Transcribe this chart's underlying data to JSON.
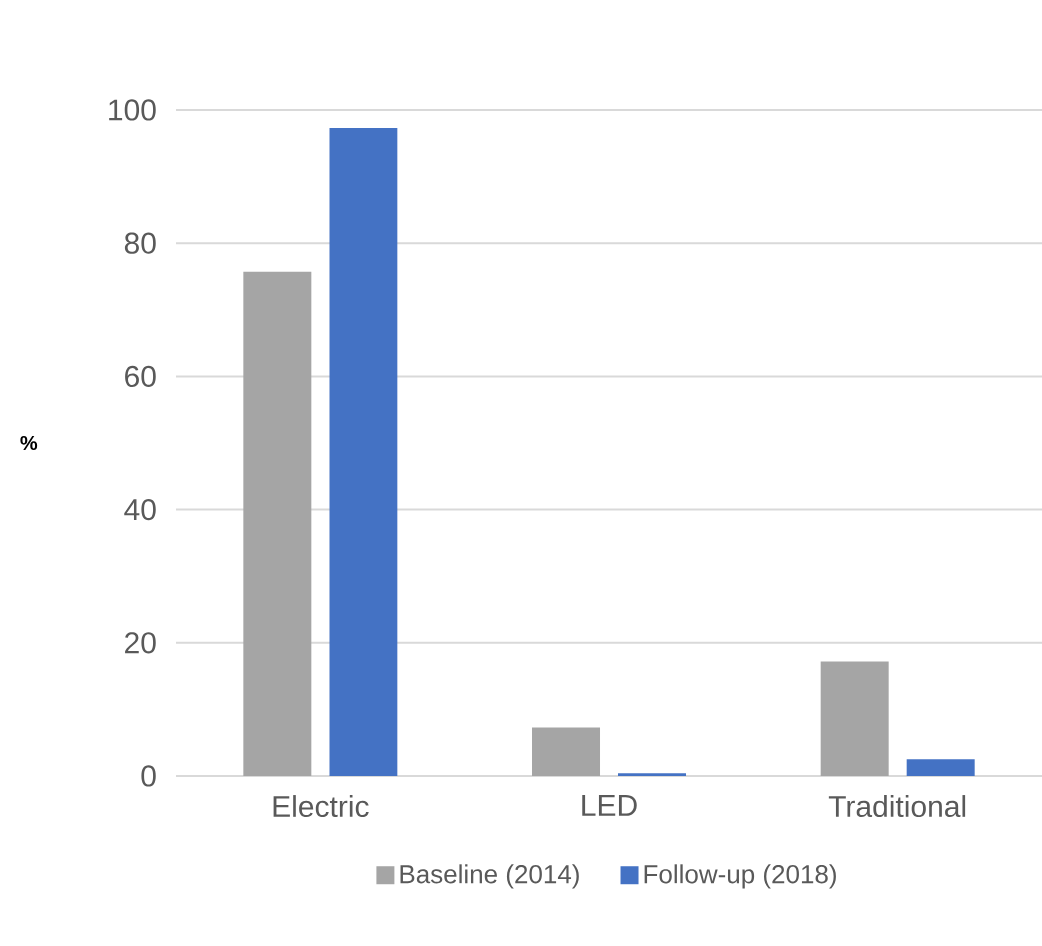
{
  "chart_data": {
    "type": "bar",
    "ylabel": "%",
    "categories": [
      "Electric",
      "LED",
      "Traditional"
    ],
    "series": [
      {
        "name": "Baseline (2014)",
        "color": "#a5a5a5",
        "values": [
          75.7,
          7.3,
          17.2
        ]
      },
      {
        "name": "Follow-up (2018)",
        "color": "#4472c4",
        "values": [
          97.3,
          0.4,
          2.5
        ]
      }
    ],
    "ylim": [
      0,
      100
    ],
    "yticks": [
      0,
      20,
      40,
      60,
      80,
      100
    ],
    "grid": "y",
    "legend": "bottom"
  }
}
